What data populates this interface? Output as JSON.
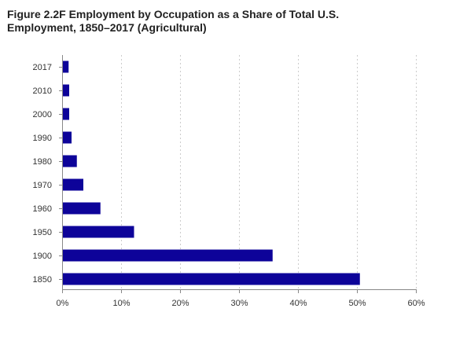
{
  "chart_data": {
    "type": "bar",
    "orientation": "horizontal",
    "title": "Figure 2.2F Employment by Occupation as a Share of Total U.S. Employment, 1850–2017 (Agricultural)",
    "categories": [
      "2017",
      "2010",
      "2000",
      "1990",
      "1980",
      "1970",
      "1960",
      "1950",
      "1900",
      "1850"
    ],
    "values": [
      1.1,
      1.2,
      1.2,
      1.6,
      2.5,
      3.6,
      6.5,
      12.2,
      35.7,
      50.5
    ],
    "value_unit": "%",
    "xlim": [
      0,
      60
    ],
    "xticks": [
      0,
      10,
      20,
      30,
      40,
      50,
      60
    ],
    "xtick_labels": [
      "0%",
      "10%",
      "20%",
      "30%",
      "40%",
      "50%",
      "60%"
    ],
    "xlabel": "",
    "ylabel": "",
    "grid": "vertical dotted",
    "legend": "none",
    "bar_color": "#0d0399",
    "gridline_color": "#cccccc",
    "axis_color": "#888888"
  }
}
